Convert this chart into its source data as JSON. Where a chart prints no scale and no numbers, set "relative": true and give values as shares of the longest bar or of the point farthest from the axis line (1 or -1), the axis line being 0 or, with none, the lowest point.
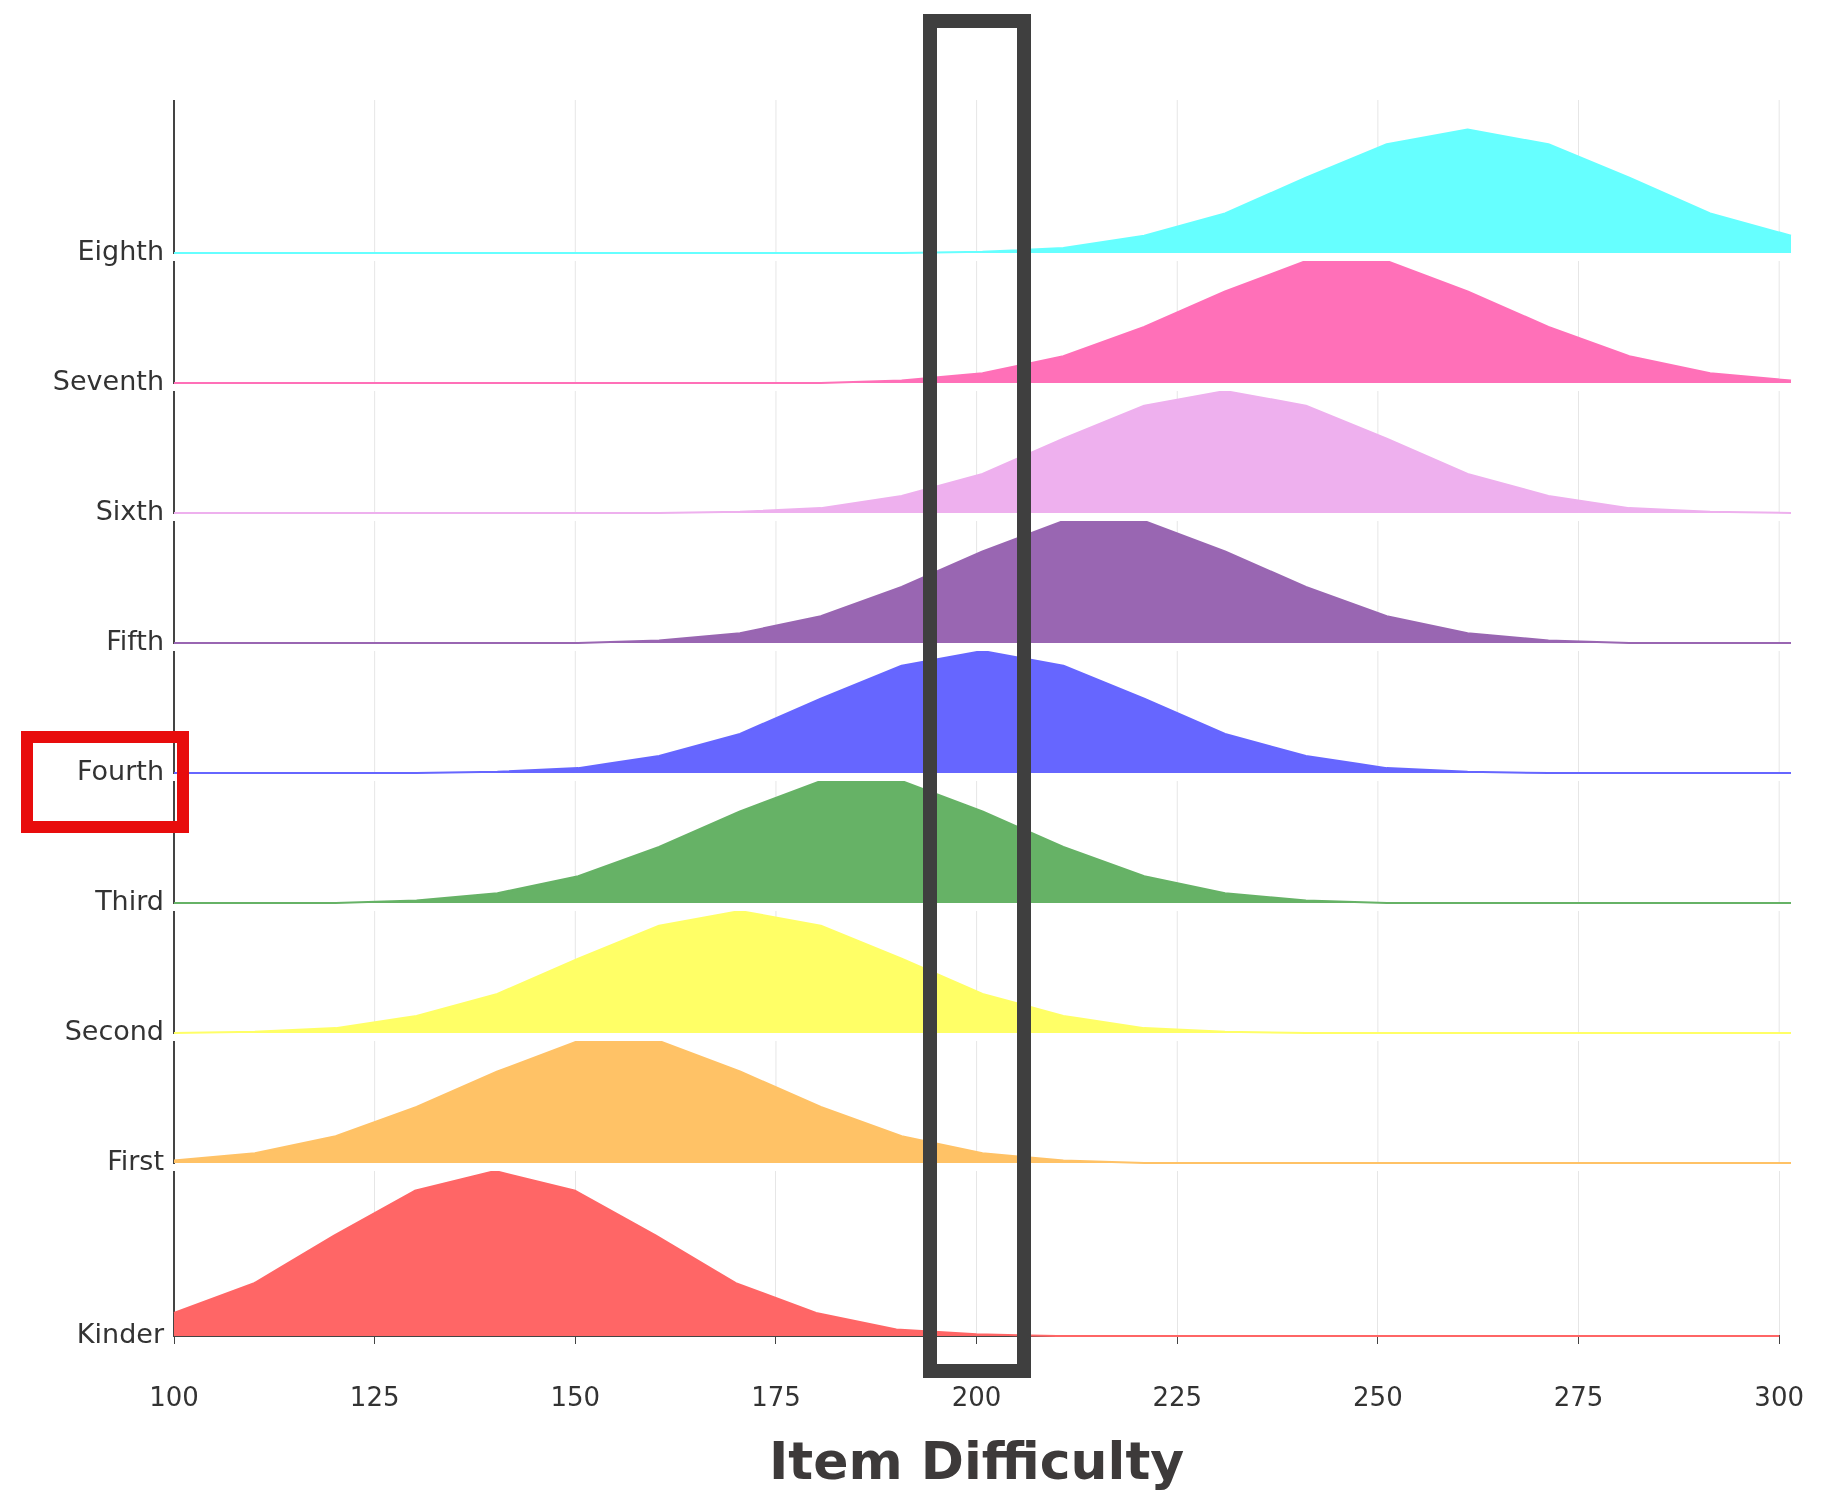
{
  "chart_data": [
    {
      "type": "area",
      "ylabel": "Eighth",
      "relative": true,
      "tick_labels": false,
      "grid": "x",
      "categories": [
        null,
        null,
        null,
        null,
        null,
        null,
        null,
        null,
        null,
        null,
        null,
        null,
        null,
        null,
        null,
        null,
        null,
        null,
        null,
        null,
        null
      ],
      "series": [
        {
          "color": "#66ffff",
          "values": [
            0,
            0,
            0,
            0,
            0,
            0,
            0,
            0,
            0,
            0,
            0.01,
            0.04,
            0.14,
            0.32,
            0.61,
            0.88,
            1,
            0.88,
            0.61,
            0.32,
            0.14
          ]
        }
      ]
    },
    {
      "type": "area",
      "ylabel": "Seventh",
      "relative": true,
      "tick_labels": false,
      "grid": "x",
      "categories": [
        null,
        null,
        null,
        null,
        null,
        null,
        null,
        null,
        null,
        null,
        null,
        null,
        null,
        null,
        null,
        null,
        null,
        null,
        null,
        null,
        null
      ],
      "series": [
        {
          "color": "#ff70b8",
          "values": [
            0,
            0,
            0,
            0,
            0,
            0,
            0,
            0,
            0,
            0.02,
            0.08,
            0.22,
            0.46,
            0.75,
            1,
            1,
            0.75,
            0.46,
            0.22,
            0.08,
            0.02
          ]
        }
      ]
    },
    {
      "type": "area",
      "ylabel": "Sixth",
      "relative": true,
      "tick_labels": false,
      "grid": "x",
      "categories": [
        null,
        null,
        null,
        null,
        null,
        null,
        null,
        null,
        null,
        null,
        null,
        null,
        null,
        null,
        null,
        null,
        null,
        null,
        null,
        null,
        null
      ],
      "series": [
        {
          "color": "#eeb0ee",
          "values": [
            0,
            0,
            0,
            0,
            0,
            0,
            0,
            0.01,
            0.04,
            0.14,
            0.32,
            0.61,
            0.88,
            1,
            0.88,
            0.61,
            0.32,
            0.14,
            0.04,
            0.01,
            0
          ]
        }
      ]
    },
    {
      "type": "area",
      "ylabel": "Fifth",
      "relative": true,
      "tick_labels": false,
      "grid": "x",
      "categories": [
        null,
        null,
        null,
        null,
        null,
        null,
        null,
        null,
        null,
        null,
        null,
        null,
        null,
        null,
        null,
        null,
        null,
        null,
        null,
        null,
        null
      ],
      "series": [
        {
          "color": "#9966b2",
          "values": [
            0,
            0,
            0,
            0,
            0,
            0,
            0.02,
            0.08,
            0.22,
            0.46,
            0.75,
            1,
            1,
            0.75,
            0.46,
            0.22,
            0.08,
            0.02,
            0,
            0,
            0
          ]
        }
      ]
    },
    {
      "type": "area",
      "ylabel": "Fourth",
      "relative": true,
      "tick_labels": false,
      "grid": "x",
      "categories": [
        null,
        null,
        null,
        null,
        null,
        null,
        null,
        null,
        null,
        null,
        null,
        null,
        null,
        null,
        null,
        null,
        null,
        null,
        null,
        null,
        null
      ],
      "series": [
        {
          "color": "#6666ff",
          "values": [
            0,
            0,
            0,
            0,
            0.01,
            0.04,
            0.14,
            0.32,
            0.61,
            0.88,
            1,
            0.88,
            0.61,
            0.32,
            0.14,
            0.04,
            0.01,
            0,
            0,
            0,
            0
          ]
        }
      ]
    },
    {
      "type": "area",
      "ylabel": "Third",
      "relative": true,
      "tick_labels": false,
      "grid": "x",
      "categories": [
        null,
        null,
        null,
        null,
        null,
        null,
        null,
        null,
        null,
        null,
        null,
        null,
        null,
        null,
        null,
        null,
        null,
        null,
        null,
        null,
        null
      ],
      "series": [
        {
          "color": "#66b266",
          "values": [
            0,
            0,
            0,
            0.02,
            0.08,
            0.22,
            0.46,
            0.75,
            1,
            1,
            0.75,
            0.46,
            0.22,
            0.08,
            0.02,
            0,
            0,
            0,
            0,
            0,
            0
          ]
        }
      ]
    },
    {
      "type": "area",
      "ylabel": "Second",
      "relative": true,
      "tick_labels": false,
      "grid": "x",
      "categories": [
        null,
        null,
        null,
        null,
        null,
        null,
        null,
        null,
        null,
        null,
        null,
        null,
        null,
        null,
        null,
        null,
        null,
        null,
        null,
        null,
        null
      ],
      "series": [
        {
          "color": "#ffff66",
          "values": [
            0,
            0.01,
            0.04,
            0.14,
            0.32,
            0.61,
            0.88,
            1,
            0.88,
            0.61,
            0.32,
            0.14,
            0.04,
            0.01,
            0,
            0,
            0,
            0,
            0,
            0,
            0
          ]
        }
      ]
    },
    {
      "type": "area",
      "ylabel": "First",
      "relative": true,
      "tick_labels": false,
      "grid": "x",
      "categories": [
        null,
        null,
        null,
        null,
        null,
        null,
        null,
        null,
        null,
        null,
        null,
        null,
        null,
        null,
        null,
        null,
        null,
        null,
        null,
        null,
        null
      ],
      "series": [
        {
          "color": "#ffc266",
          "values": [
            0.02,
            0.08,
            0.22,
            0.46,
            0.75,
            1,
            1,
            0.75,
            0.46,
            0.22,
            0.08,
            0.02,
            0,
            0,
            0,
            0,
            0,
            0,
            0,
            0,
            0
          ]
        }
      ]
    },
    {
      "type": "area",
      "ylabel": "Kinder",
      "xlabel": "Item Difficulty",
      "relative": true,
      "tick_labels": "x",
      "grid": "x",
      "xlim": [
        100,
        300
      ],
      "xticks": [
        100,
        125,
        150,
        175,
        200,
        225,
        250,
        275,
        300
      ],
      "x": [
        100,
        110,
        120,
        130,
        140,
        150,
        160,
        170,
        180,
        190,
        200,
        210,
        220,
        230,
        240,
        250,
        260,
        270,
        280,
        290,
        300
      ],
      "series": [
        {
          "color": "#ff6666",
          "values": [
            0.14,
            0.32,
            0.61,
            0.88,
            1,
            0.88,
            0.61,
            0.32,
            0.14,
            0.04,
            0.01,
            0,
            0,
            0,
            0,
            0,
            0,
            0,
            0,
            0,
            0
          ]
        }
      ]
    }
  ]
}
